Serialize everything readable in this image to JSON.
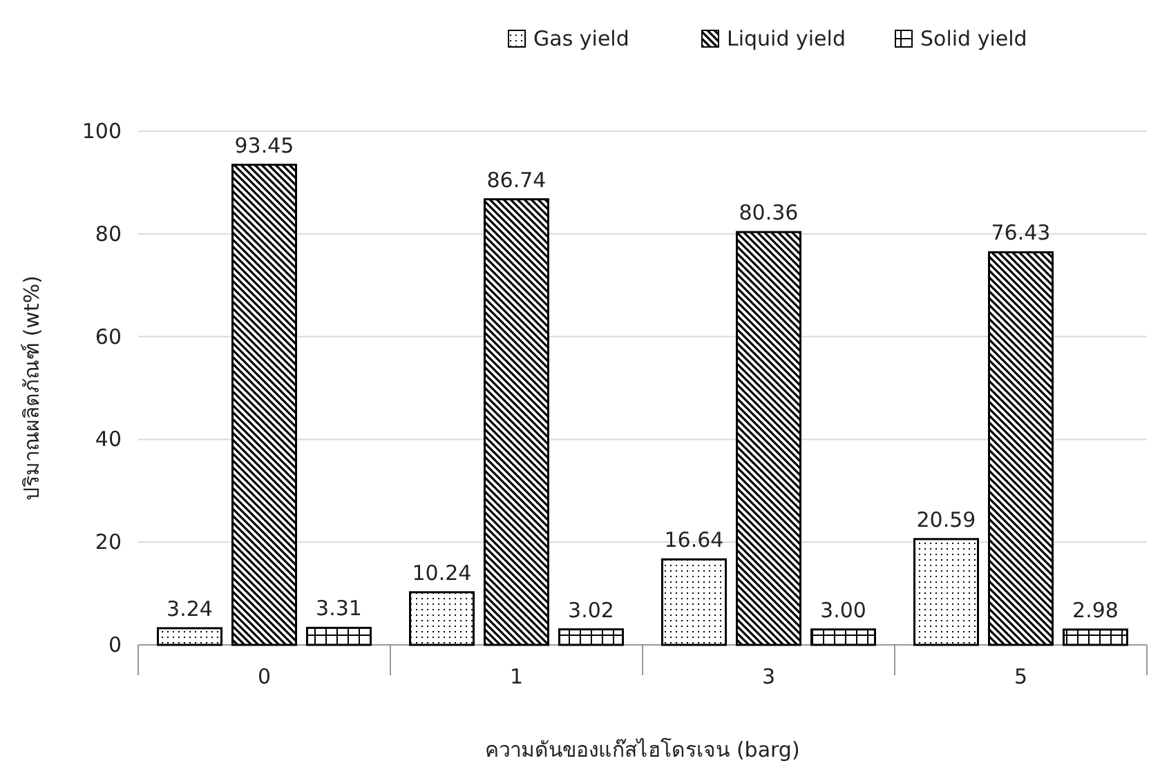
{
  "chart_data": {
    "type": "bar",
    "xlabel": "ความดันของแก๊สไฮโดรเจน (barg)",
    "ylabel": "ปริมาณผลิตภัณฑ์ (wt%)",
    "categories": [
      "0",
      "1",
      "3",
      "5"
    ],
    "series": [
      {
        "name": "Gas yield",
        "color": "#000000",
        "values": [
          3.24,
          10.24,
          16.64,
          20.59
        ],
        "value_labels": [
          "3.24",
          "10.24",
          "16.64",
          "20.59"
        ]
      },
      {
        "name": "Liquid yield",
        "color": "#000000",
        "values": [
          93.45,
          86.74,
          80.36,
          76.43
        ],
        "value_labels": [
          "93.45",
          "86.74",
          "80.36",
          "76.43"
        ]
      },
      {
        "name": "Solid yield",
        "color": "#000000",
        "values": [
          3.31,
          3.02,
          3.0,
          2.98
        ],
        "value_labels": [
          "3.31",
          "3.02",
          "3.00",
          "2.98"
        ]
      }
    ],
    "ylim": [
      0,
      100
    ],
    "yticks": [
      0,
      20,
      40,
      60,
      80,
      100
    ],
    "grid": "y",
    "legend": "top"
  }
}
